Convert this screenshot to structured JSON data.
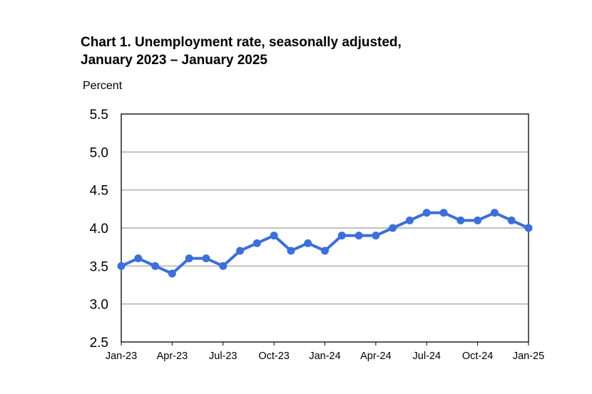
{
  "chart_data": {
    "type": "line",
    "title_line1": "Chart 1. Unemployment rate, seasonally adjusted,",
    "title_line2": "January 2023 – January 2025",
    "ylabel": "Percent",
    "xlabel": "",
    "ylim": [
      2.5,
      5.5
    ],
    "yticks": [
      "2.5",
      "3.0",
      "3.5",
      "4.0",
      "4.5",
      "5.0",
      "5.5"
    ],
    "grid": true,
    "x": [
      "Jan-23",
      "Feb-23",
      "Mar-23",
      "Apr-23",
      "May-23",
      "Jun-23",
      "Jul-23",
      "Aug-23",
      "Sep-23",
      "Oct-23",
      "Nov-23",
      "Dec-23",
      "Jan-24",
      "Feb-24",
      "Mar-24",
      "Apr-24",
      "May-24",
      "Jun-24",
      "Jul-24",
      "Aug-24",
      "Sep-24",
      "Oct-24",
      "Nov-24",
      "Dec-24",
      "Jan-25"
    ],
    "xtick_labels": [
      "Jan-23",
      "Apr-23",
      "Jul-23",
      "Oct-23",
      "Jan-24",
      "Apr-24",
      "Jul-24",
      "Oct-24",
      "Jan-25"
    ],
    "series": [
      {
        "values": [
          3.5,
          3.6,
          3.5,
          3.4,
          3.6,
          3.6,
          3.5,
          3.7,
          3.8,
          3.9,
          3.7,
          3.8,
          3.7,
          3.9,
          3.9,
          3.9,
          4.0,
          4.1,
          4.2,
          4.2,
          4.1,
          4.1,
          4.2,
          4.1,
          4.0
        ],
        "color": "#3d6fd8"
      }
    ]
  }
}
